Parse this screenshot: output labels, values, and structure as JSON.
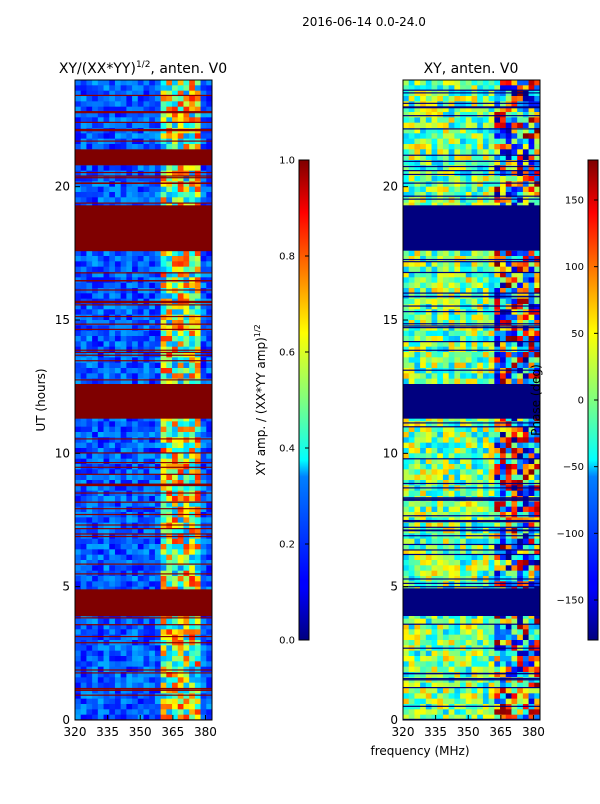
{
  "figure": {
    "suptitle": "2016-06-14 0.0-24.0",
    "shared_xlabel": "frequency (MHz)"
  },
  "chart_data": [
    {
      "type": "heatmap",
      "title": "XY/(XX*YY)^1/2, anten. V0",
      "title_main": "XY/(XX*YY)",
      "title_exp": "1/2",
      "title_tail": ", anten. V0",
      "xlabel": "",
      "ylabel": "UT (hours)",
      "xlim": [
        320,
        383
      ],
      "ylim": [
        0,
        24
      ],
      "xticks": [
        320,
        335,
        350,
        365,
        380
      ],
      "yticks": [
        0,
        5,
        10,
        15,
        20
      ],
      "colormap": "jet",
      "dominant_value": 0.15,
      "saturated_blocks_ut": [
        [
          3.9,
          4.9
        ],
        [
          11.3,
          12.6
        ],
        [
          17.6,
          19.3
        ],
        [
          20.8,
          21.4
        ]
      ],
      "colorbar": {
        "label": "XY amp. / (XX*YY amp)^1/2",
        "label_main": "XY amp. / (XX*YY amp)",
        "label_exp": "1/2",
        "range": [
          0.0,
          1.0
        ],
        "ticks": [
          "0.0",
          "0.2",
          "0.4",
          "0.6",
          "0.8",
          "1.0"
        ]
      }
    },
    {
      "type": "heatmap",
      "title": "XY, anten. V0",
      "xlabel": "frequency (MHz)",
      "ylabel": "",
      "xlim": [
        320,
        383
      ],
      "ylim": [
        0,
        24
      ],
      "xticks": [
        320,
        335,
        350,
        365,
        380
      ],
      "yticks": [
        0,
        5,
        10,
        15,
        20
      ],
      "colormap": "jet",
      "unit": "degrees",
      "masked_blocks_ut": [
        [
          3.9,
          4.9
        ],
        [
          11.3,
          12.6
        ],
        [
          17.6,
          19.3
        ]
      ],
      "colorbar": {
        "label": "Phase (deg)",
        "range": [
          -180,
          180
        ],
        "ticks": [
          "150",
          "100",
          "50",
          "0",
          "−50",
          "−100",
          "−150"
        ]
      }
    }
  ]
}
